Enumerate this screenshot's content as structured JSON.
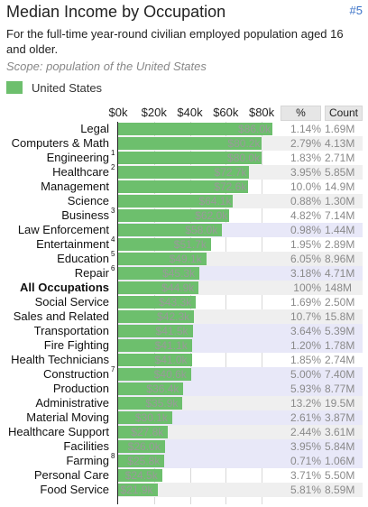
{
  "header": {
    "title": "Median Income by Occupation",
    "rank": "#5",
    "subtitle": "For the full-time year-round civilian employed population aged 16 and older.",
    "scope": "Scope: population of the United States"
  },
  "columns": {
    "pct": "%",
    "count": "Count"
  },
  "colors": {
    "bar": "#6dbf6d",
    "highlight_row": "#e8e8f8",
    "alt_row": "#efefef"
  },
  "chart_data": {
    "type": "bar",
    "orientation": "horizontal",
    "xlim": [
      0,
      86000
    ],
    "xticks": [
      {
        "value": 0,
        "label": "$0k"
      },
      {
        "value": 20000,
        "label": "$20k"
      },
      {
        "value": 40000,
        "label": "$40k"
      },
      {
        "value": 60000,
        "label": "$60k"
      },
      {
        "value": 80000,
        "label": "$80k"
      }
    ],
    "grid": true,
    "legend": {
      "placement": "top-left",
      "entries": [
        "United States"
      ]
    },
    "series": [
      {
        "name": "United States",
        "rows": [
          {
            "label": "Legal",
            "sup": "",
            "value": 86000,
            "value_label": "$86.0k",
            "pct": "1.14%",
            "count": "1.69M",
            "bold": false,
            "highlight": false
          },
          {
            "label": "Computers & Math",
            "sup": "",
            "value": 80200,
            "value_label": "$80.2k",
            "pct": "2.79%",
            "count": "4.13M",
            "bold": false,
            "highlight": false
          },
          {
            "label": "Engineering",
            "sup": "1",
            "value": 80000,
            "value_label": "$80.0k",
            "pct": "1.83%",
            "count": "2.71M",
            "bold": false,
            "highlight": false
          },
          {
            "label": "Healthcare",
            "sup": "2",
            "value": 72700,
            "value_label": "$72.7k",
            "pct": "3.95%",
            "count": "5.85M",
            "bold": false,
            "highlight": false
          },
          {
            "label": "Management",
            "sup": "",
            "value": 72600,
            "value_label": "$72.6k",
            "pct": "10.0%",
            "count": "14.9M",
            "bold": false,
            "highlight": false
          },
          {
            "label": "Science",
            "sup": "",
            "value": 64100,
            "value_label": "$64.1k",
            "pct": "0.88%",
            "count": "1.30M",
            "bold": false,
            "highlight": false
          },
          {
            "label": "Business",
            "sup": "3",
            "value": 62000,
            "value_label": "$62.0k",
            "pct": "4.82%",
            "count": "7.14M",
            "bold": false,
            "highlight": false
          },
          {
            "label": "Law Enforcement",
            "sup": "",
            "value": 58000,
            "value_label": "$58.0k",
            "pct": "0.98%",
            "count": "1.44M",
            "bold": false,
            "highlight": true
          },
          {
            "label": "Entertainment",
            "sup": "4",
            "value": 51700,
            "value_label": "$51.7k",
            "pct": "1.95%",
            "count": "2.89M",
            "bold": false,
            "highlight": false
          },
          {
            "label": "Education",
            "sup": "5",
            "value": 49100,
            "value_label": "$49.1k",
            "pct": "6.05%",
            "count": "8.96M",
            "bold": false,
            "highlight": false
          },
          {
            "label": "Repair",
            "sup": "6",
            "value": 45300,
            "value_label": "$45.3k",
            "pct": "3.18%",
            "count": "4.71M",
            "bold": false,
            "highlight": true
          },
          {
            "label": "All Occupations",
            "sup": "",
            "value": 44900,
            "value_label": "$44.9k",
            "pct": "100%",
            "count": "148M",
            "bold": true,
            "highlight": false
          },
          {
            "label": "Social Service",
            "sup": "",
            "value": 43300,
            "value_label": "$43.3k",
            "pct": "1.69%",
            "count": "2.50M",
            "bold": false,
            "highlight": false
          },
          {
            "label": "Sales and Related",
            "sup": "",
            "value": 42300,
            "value_label": "$42.3k",
            "pct": "10.7%",
            "count": "15.8M",
            "bold": false,
            "highlight": false
          },
          {
            "label": "Transportation",
            "sup": "",
            "value": 41500,
            "value_label": "$41.5k",
            "pct": "3.64%",
            "count": "5.39M",
            "bold": false,
            "highlight": true
          },
          {
            "label": "Fire Fighting",
            "sup": "",
            "value": 41100,
            "value_label": "$41.1k",
            "pct": "1.20%",
            "count": "1.78M",
            "bold": false,
            "highlight": true
          },
          {
            "label": "Health Technicians",
            "sup": "",
            "value": 41000,
            "value_label": "$41.0k",
            "pct": "1.85%",
            "count": "2.74M",
            "bold": false,
            "highlight": false
          },
          {
            "label": "Construction",
            "sup": "7",
            "value": 40600,
            "value_label": "$40.6k",
            "pct": "5.00%",
            "count": "7.40M",
            "bold": false,
            "highlight": true
          },
          {
            "label": "Production",
            "sup": "",
            "value": 36400,
            "value_label": "$36.4k",
            "pct": "5.93%",
            "count": "8.77M",
            "bold": false,
            "highlight": true
          },
          {
            "label": "Administrative",
            "sup": "",
            "value": 35900,
            "value_label": "$35.9k",
            "pct": "13.2%",
            "count": "19.5M",
            "bold": false,
            "highlight": false
          },
          {
            "label": "Material Moving",
            "sup": "",
            "value": 30100,
            "value_label": "$30.1k",
            "pct": "2.61%",
            "count": "3.87M",
            "bold": false,
            "highlight": true
          },
          {
            "label": "Healthcare Support",
            "sup": "",
            "value": 27800,
            "value_label": "$27.8k",
            "pct": "2.44%",
            "count": "3.61M",
            "bold": false,
            "highlight": false
          },
          {
            "label": "Facilities",
            "sup": "",
            "value": 26000,
            "value_label": "$26.0k",
            "pct": "3.95%",
            "count": "5.84M",
            "bold": false,
            "highlight": true
          },
          {
            "label": "Farming",
            "sup": "8",
            "value": 25800,
            "value_label": "$25.8k",
            "pct": "0.71%",
            "count": "1.06M",
            "bold": false,
            "highlight": true
          },
          {
            "label": "Personal Care",
            "sup": "",
            "value": 24500,
            "value_label": "$24.5k",
            "pct": "3.71%",
            "count": "5.50M",
            "bold": false,
            "highlight": false
          },
          {
            "label": "Food Service",
            "sup": "",
            "value": 21900,
            "value_label": "$21.9k",
            "pct": "5.81%",
            "count": "8.59M",
            "bold": false,
            "highlight": false
          }
        ]
      }
    ]
  }
}
